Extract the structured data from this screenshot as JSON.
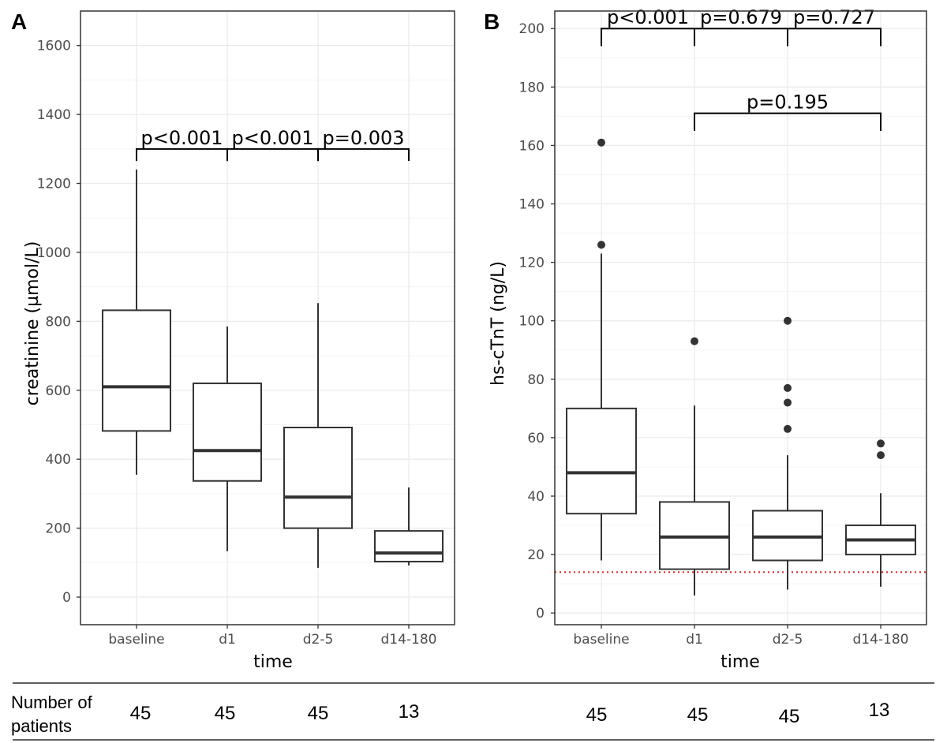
{
  "chart_data": [
    {
      "panel": "A",
      "type": "box",
      "xlabel": "time",
      "ylabel": "creatinine (µmol/L)",
      "ylim": [
        -80,
        1700
      ],
      "yticks": [
        0,
        200,
        400,
        600,
        800,
        1000,
        1200,
        1400,
        1600
      ],
      "grid": true,
      "categories": [
        "baseline",
        "d1",
        "d2-5",
        "d14-180"
      ],
      "boxes": [
        {
          "category": "baseline",
          "whisker_low": 355,
          "q1": 482,
          "median": 610,
          "q3": 832,
          "whisker_high": 1240,
          "outliers": []
        },
        {
          "category": "d1",
          "whisker_low": 133,
          "q1": 337,
          "median": 425,
          "q3": 620,
          "whisker_high": 785,
          "outliers": []
        },
        {
          "category": "d2-5",
          "whisker_low": 85,
          "q1": 200,
          "median": 290,
          "q3": 492,
          "whisker_high": 853,
          "outliers": []
        },
        {
          "category": "d14-180",
          "whisker_low": 92,
          "q1": 103,
          "median": 128,
          "q3": 192,
          "whisker_high": 318,
          "outliers": []
        }
      ],
      "comparisons": [
        {
          "from": 0,
          "to": 1,
          "label": "p<0.001",
          "y": 1300,
          "tip_y": 1265
        },
        {
          "from": 1,
          "to": 2,
          "label": "p<0.001",
          "y": 1300,
          "tip_y": 1265
        },
        {
          "from": 2,
          "to": 3,
          "label": "p=0.003",
          "y": 1300,
          "tip_y": 1265
        }
      ],
      "reference_line": null,
      "patients": [
        "45",
        "45",
        "45",
        "13"
      ]
    },
    {
      "panel": "B",
      "type": "box",
      "xlabel": "time",
      "ylabel": "hs-cTnT (ng/L)",
      "ylim": [
        -4,
        206
      ],
      "yticks": [
        0,
        20,
        40,
        60,
        80,
        100,
        120,
        140,
        160,
        180,
        200
      ],
      "grid": true,
      "categories": [
        "baseline",
        "d1",
        "d2-5",
        "d14-180"
      ],
      "boxes": [
        {
          "category": "baseline",
          "whisker_low": 18,
          "q1": 34,
          "median": 48,
          "q3": 70,
          "whisker_high": 123,
          "outliers": [
            126,
            161
          ]
        },
        {
          "category": "d1",
          "whisker_low": 6,
          "q1": 15,
          "median": 26,
          "q3": 38,
          "whisker_high": 71,
          "outliers": [
            93
          ]
        },
        {
          "category": "d2-5",
          "whisker_low": 8,
          "q1": 18,
          "median": 26,
          "q3": 35,
          "whisker_high": 54,
          "outliers": [
            63,
            72,
            77,
            100
          ]
        },
        {
          "category": "d14-180",
          "whisker_low": 9,
          "q1": 20,
          "median": 25,
          "q3": 30,
          "whisker_high": 41,
          "outliers": [
            54,
            58
          ]
        }
      ],
      "comparisons": [
        {
          "from": 0,
          "to": 1,
          "label": "p<0.001",
          "y": 200,
          "tip_y": 194
        },
        {
          "from": 1,
          "to": 2,
          "label": "p=0.679",
          "y": 200,
          "tip_y": 194
        },
        {
          "from": 2,
          "to": 3,
          "label": "p=0.727",
          "y": 200,
          "tip_y": 194
        },
        {
          "from": 1,
          "to": 3,
          "label": "p=0.195",
          "y": 171,
          "tip_y": 165
        }
      ],
      "reference_line": {
        "y": 14,
        "color": "#e41a1c",
        "style": "dotted"
      },
      "patients": [
        "45",
        "45",
        "45",
        "13"
      ]
    }
  ],
  "table": {
    "row_label_line1": "Number of",
    "row_label_line2": "patients"
  },
  "colors": {
    "panel_background": "#ffffff",
    "panel_border": "#333333",
    "grid_major": "#ebebeb",
    "grid_minor": "#f5f5f5",
    "box_line": "#333333",
    "outlier": "#333333",
    "reference_line": "#e41a1c"
  }
}
